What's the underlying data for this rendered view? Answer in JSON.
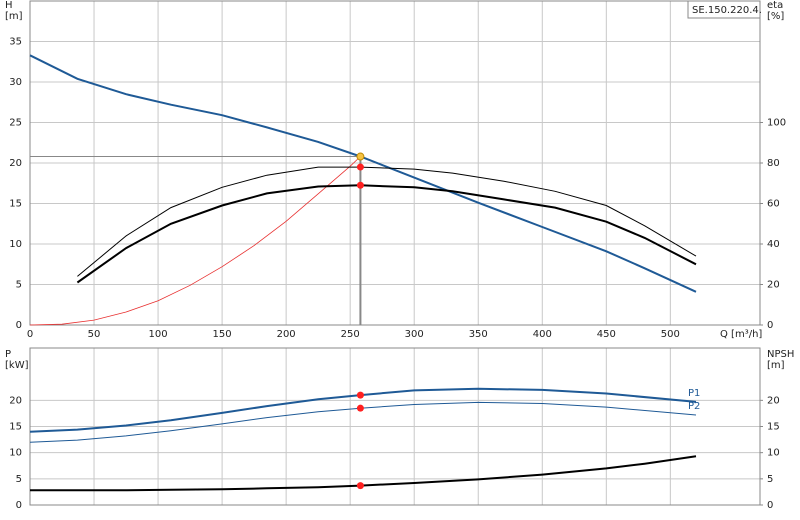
{
  "chart_data": [
    {
      "type": "line",
      "tag": "SE.150.220.4.",
      "xlabel": "Q [m³/h]",
      "ylabel": [
        "H",
        "[m]"
      ],
      "y2label": [
        "eta",
        "[%]"
      ],
      "xlim": [
        0,
        570
      ],
      "xticks": [
        0,
        50,
        100,
        150,
        200,
        250,
        300,
        350,
        400,
        450,
        500
      ],
      "ylim": [
        0,
        40
      ],
      "yticks": [
        0,
        5,
        10,
        15,
        20,
        25,
        30,
        35
      ],
      "y2lim": [
        0,
        160
      ],
      "y2ticks": [
        0,
        20,
        40,
        60,
        80,
        100
      ],
      "grid": true,
      "guide_lines": true,
      "series": [
        {
          "color": "#e83030",
          "width": 0.8,
          "x": [
            0,
            25,
            50,
            75,
            100,
            125,
            150,
            175,
            200,
            225,
            250,
            258
          ],
          "values": [
            0,
            0.1,
            0.6,
            1.6,
            3.0,
            4.9,
            7.2,
            9.8,
            12.8,
            16.2,
            19.6,
            20.8
          ]
        },
        {
          "color": "#1f5a96",
          "width": 2,
          "x": [
            0,
            37,
            75,
            110,
            150,
            185,
            225,
            258,
            300,
            350,
            400,
            450,
            480,
            520
          ],
          "values": [
            33.3,
            30.4,
            28.5,
            27.2,
            25.9,
            24.4,
            22.6,
            20.8,
            18.2,
            15.1,
            12.1,
            9.1,
            7.0,
            4.1
          ]
        },
        {
          "color": "#000000",
          "width": 1,
          "axis": "y2",
          "x": [
            37,
            75,
            110,
            150,
            185,
            225,
            258,
            300,
            330,
            370,
            410,
            450,
            480,
            520
          ],
          "values": [
            24,
            44,
            58,
            68,
            74,
            78,
            78,
            77,
            75,
            71,
            66,
            59,
            49,
            34
          ]
        },
        {
          "color": "#000000",
          "width": 2,
          "axis": "y2",
          "x": [
            37,
            75,
            110,
            150,
            185,
            225,
            258,
            300,
            330,
            370,
            410,
            450,
            480,
            520
          ],
          "values": [
            21,
            38,
            50,
            59,
            65,
            68.4,
            69,
            68,
            66,
            62,
            58,
            51,
            43,
            30
          ]
        }
      ],
      "points": [
        {
          "x": 258,
          "y": 20.8,
          "color": "#f5c242"
        },
        {
          "x": 258,
          "y": 78,
          "axis": "y2",
          "color": "#ff2020"
        },
        {
          "x": 258,
          "y": 69,
          "axis": "y2",
          "color": "#ff2020"
        }
      ]
    },
    {
      "type": "line",
      "ylabel": [
        "P",
        "[kW]"
      ],
      "y2label": [
        "NPSH",
        "[m]"
      ],
      "xlim": [
        0,
        570
      ],
      "xticks": [
        0,
        50,
        100,
        150,
        200,
        250,
        300,
        350,
        400,
        450,
        500
      ],
      "ylim": [
        0,
        30
      ],
      "yticks": [
        0,
        5,
        10,
        15,
        20
      ],
      "y2lim": [
        0,
        30
      ],
      "y2ticks": [
        0,
        5,
        10,
        15,
        20
      ],
      "grid": true,
      "series": [
        {
          "name": "P1",
          "color": "#1f5a96",
          "width": 2,
          "x": [
            0,
            37,
            75,
            110,
            150,
            185,
            225,
            258,
            300,
            350,
            400,
            450,
            520
          ],
          "values": [
            14.0,
            14.4,
            15.2,
            16.2,
            17.6,
            18.9,
            20.2,
            21.0,
            21.9,
            22.2,
            22.0,
            21.3,
            19.7
          ]
        },
        {
          "name": "P2",
          "color": "#1f5a96",
          "width": 1,
          "x": [
            0,
            37,
            75,
            110,
            150,
            185,
            225,
            258,
            300,
            350,
            400,
            450,
            520
          ],
          "values": [
            12.0,
            12.4,
            13.2,
            14.2,
            15.5,
            16.7,
            17.8,
            18.5,
            19.2,
            19.6,
            19.4,
            18.7,
            17.2
          ]
        },
        {
          "color": "#000000",
          "width": 2,
          "axis": "y2",
          "x": [
            0,
            75,
            110,
            150,
            185,
            225,
            258,
            300,
            350,
            400,
            450,
            480,
            520
          ],
          "values": [
            2.8,
            2.8,
            2.9,
            3.0,
            3.2,
            3.4,
            3.7,
            4.2,
            4.9,
            5.8,
            7.0,
            7.9,
            9.3
          ]
        }
      ],
      "points": [
        {
          "x": 258,
          "y": 21.0,
          "color": "#ff2020"
        },
        {
          "x": 258,
          "y": 18.5,
          "color": "#ff2020"
        },
        {
          "x": 258,
          "y": 3.7,
          "axis": "y2",
          "color": "#ff2020"
        }
      ]
    }
  ]
}
